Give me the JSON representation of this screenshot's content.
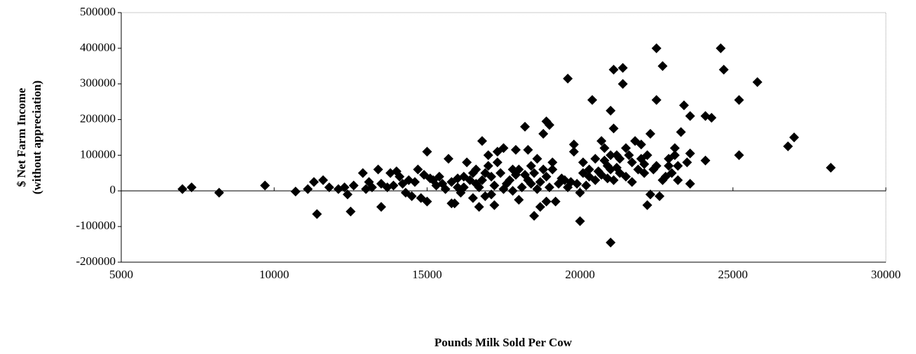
{
  "chart_data": {
    "type": "scatter",
    "xlabel": "Pounds Milk Sold Per Cow",
    "ylabel": [
      "$ Net Farm Income",
      "(without appreciation)"
    ],
    "color": "#000000",
    "xlim": [
      5000,
      30000
    ],
    "xticks": [
      5000,
      10000,
      15000,
      20000,
      25000,
      30000
    ],
    "ylim": [
      -200000,
      500000
    ],
    "yticks": [
      -200000,
      -100000,
      0,
      100000,
      200000,
      300000,
      400000,
      500000
    ],
    "x": [
      7000,
      7300,
      8200,
      9700,
      10700,
      11100,
      11300,
      11400,
      11600,
      11800,
      12100,
      12300,
      12400,
      12500,
      12600,
      12900,
      13100,
      13000,
      13400,
      13500,
      13500,
      13700,
      13800,
      14000,
      14100,
      14300,
      14500,
      14700,
      14800,
      14900,
      15000,
      15000,
      15200,
      15400,
      15500,
      15700,
      15800,
      15900,
      16000,
      16200,
      16300,
      16500,
      16600,
      16700,
      16800,
      16900,
      17000,
      17100,
      17200,
      17300,
      17500,
      17600,
      17800,
      17900,
      18000,
      18200,
      18300,
      18400,
      18500,
      18600,
      18700,
      18800,
      18900,
      18900,
      19000,
      19100,
      19200,
      19300,
      19500,
      19600,
      19800,
      19800,
      20000,
      20000,
      20100,
      20300,
      20400,
      20500,
      20700,
      20800,
      20900,
      21000,
      21000,
      21100,
      21100,
      21200,
      21300,
      21400,
      21400,
      21500,
      21700,
      21800,
      22000,
      22100,
      22200,
      22300,
      22300,
      22500,
      22500,
      22600,
      22700,
      22800,
      22900,
      23100,
      23200,
      23300,
      23400,
      23500,
      23600,
      23600,
      23600,
      24100,
      24100,
      24300,
      24600,
      24700,
      25200,
      25200,
      25800,
      26800,
      27000,
      28200,
      15300,
      15600,
      15800,
      16000,
      16100,
      16400,
      16500,
      16700,
      16800,
      16900,
      17000,
      17100,
      17200,
      17400,
      17500,
      17700,
      17800,
      17900,
      18000,
      18100,
      18200,
      18300,
      18500,
      18600,
      18700,
      18800,
      18900,
      19000,
      19100,
      19400,
      19600,
      19700,
      19900,
      20100,
      20200,
      20300,
      20500,
      20600,
      20700,
      20800,
      20900,
      21000,
      21000,
      21100,
      21200,
      21300,
      21500,
      21600,
      21700,
      21900,
      22000,
      22100,
      22200,
      22400,
      22500,
      22700,
      22900,
      23000,
      23100,
      23200,
      14200,
      14400,
      13200,
      13900,
      14600,
      15100,
      16200,
      16600,
      17300,
      18400
    ],
    "values": [
      5000,
      10000,
      -5000,
      15000,
      -2000,
      5000,
      25000,
      -65000,
      30000,
      10000,
      5000,
      10000,
      -10000,
      -58000,
      15000,
      50000,
      25000,
      5000,
      60000,
      -45000,
      20000,
      10000,
      50000,
      55000,
      40000,
      -5000,
      -15000,
      60000,
      -20000,
      45000,
      110000,
      -30000,
      30000,
      40000,
      20000,
      90000,
      -35000,
      -35000,
      35000,
      10000,
      80000,
      -20000,
      60000,
      -45000,
      140000,
      50000,
      100000,
      -10000,
      -40000,
      110000,
      120000,
      20000,
      60000,
      115000,
      -25000,
      180000,
      115000,
      20000,
      -70000,
      90000,
      -45000,
      160000,
      195000,
      -30000,
      185000,
      60000,
      -30000,
      20000,
      30000,
      315000,
      130000,
      110000,
      -85000,
      -5000,
      50000,
      40000,
      255000,
      90000,
      140000,
      120000,
      70000,
      225000,
      -145000,
      340000,
      175000,
      100000,
      50000,
      345000,
      300000,
      120000,
      80000,
      140000,
      130000,
      50000,
      -40000,
      -10000,
      160000,
      400000,
      255000,
      -15000,
      350000,
      40000,
      70000,
      120000,
      30000,
      165000,
      240000,
      80000,
      210000,
      20000,
      105000,
      85000,
      210000,
      205000,
      400000,
      340000,
      255000,
      100000,
      305000,
      125000,
      150000,
      65000,
      15000,
      5000,
      25000,
      10000,
      -5000,
      30000,
      50000,
      10000,
      30000,
      -15000,
      70000,
      40000,
      15000,
      50000,
      5000,
      30000,
      0,
      45000,
      60000,
      10000,
      45000,
      30000,
      50000,
      5000,
      25000,
      60000,
      40000,
      10000,
      80000,
      35000,
      10000,
      25000,
      20000,
      80000,
      15000,
      60000,
      30000,
      55000,
      45000,
      85000,
      35000,
      60000,
      100000,
      30000,
      65000,
      90000,
      40000,
      100000,
      25000,
      60000,
      90000,
      75000,
      100000,
      60000,
      70000,
      30000,
      90000,
      50000,
      100000,
      70000,
      20000,
      30000,
      10000,
      15000,
      25000,
      35000,
      40000,
      20000,
      80000,
      70000
    ]
  }
}
